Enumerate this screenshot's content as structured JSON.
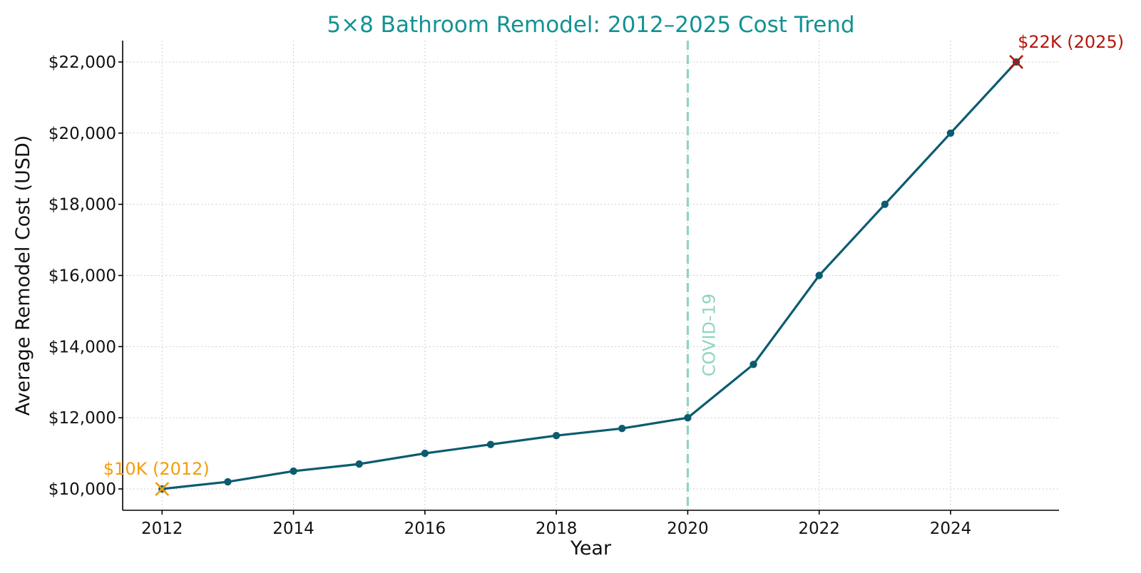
{
  "chart_data": {
    "type": "line",
    "title": "5×8 Bathroom Remodel: 2012–2025 Cost Trend",
    "xlabel": "Year",
    "ylabel": "Average Remodel Cost (USD)",
    "xlim": [
      2011.4,
      2025.65
    ],
    "ylim": [
      9400,
      22600
    ],
    "x_ticks": [
      2012,
      2014,
      2016,
      2018,
      2020,
      2022,
      2024
    ],
    "x_tick_labels": [
      "2012",
      "2014",
      "2016",
      "2018",
      "2020",
      "2022",
      "2024"
    ],
    "y_ticks": [
      10000,
      12000,
      14000,
      16000,
      18000,
      20000,
      22000
    ],
    "y_tick_labels": [
      "$10,000",
      "$12,000",
      "$14,000",
      "$16,000",
      "$18,000",
      "$20,000",
      "$22,000"
    ],
    "grid": true,
    "series": [
      {
        "color": "#0b5c70",
        "x": [
          2012,
          2013,
          2014,
          2015,
          2016,
          2017,
          2018,
          2019,
          2020,
          2021,
          2022,
          2023,
          2024,
          2025
        ],
        "y": [
          10000,
          10200,
          10500,
          10700,
          11000,
          11250,
          11500,
          11700,
          12000,
          13500,
          16000,
          18000,
          20000,
          22000
        ]
      }
    ],
    "reference_line": {
      "x": 2020,
      "label": "COVID-19",
      "color": "#8fd6bd"
    },
    "annotations": [
      {
        "text": "$10K (2012)",
        "x": 2012,
        "y": 10000,
        "color": "#f59c0b",
        "marker": "x"
      },
      {
        "text": "$22K (2025)",
        "x": 2025,
        "y": 22000,
        "color": "#b5150b",
        "marker": "x"
      }
    ],
    "colors": {
      "title": "#139293",
      "line": "#0b5c70"
    }
  }
}
